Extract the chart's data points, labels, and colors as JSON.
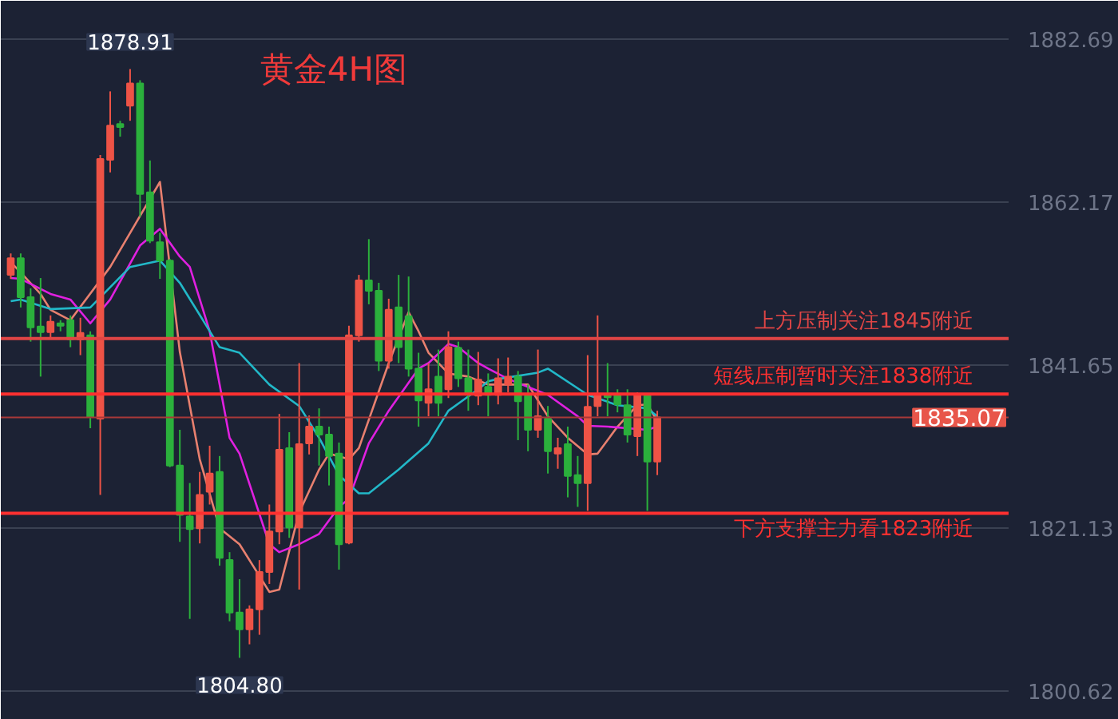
{
  "chart_data": {
    "type": "candlestick",
    "title": "黄金4H图",
    "categories": [
      null,
      null,
      null,
      null,
      null,
      null,
      null,
      null,
      null,
      null,
      null,
      null,
      null,
      null,
      null,
      null,
      null,
      null,
      null,
      null,
      null,
      null,
      null,
      null,
      null,
      null,
      null,
      null,
      null,
      null,
      null,
      null,
      null,
      null,
      null,
      null,
      null,
      null,
      null,
      null,
      null,
      null,
      null,
      null,
      null,
      null,
      null,
      null,
      null,
      null,
      null,
      null,
      null,
      null,
      null,
      null,
      null,
      null,
      null,
      null,
      null,
      null,
      null,
      null,
      null,
      null
    ],
    "ohlc": [
      [
        1853.0,
        1855.7,
        1852.5,
        1855.1
      ],
      [
        1855.1,
        1855.7,
        1848.9,
        1850.2
      ],
      [
        1850.2,
        1851.3,
        1844.6,
        1846.4
      ],
      [
        1846.5,
        1852.6,
        1840.2,
        1845.8
      ],
      [
        1845.8,
        1847.9,
        1844.9,
        1847.1
      ],
      [
        1846.9,
        1847.3,
        1845.9,
        1846.6
      ],
      [
        1847.3,
        1847.9,
        1843.9,
        1844.9
      ],
      [
        1844.9,
        1847.6,
        1842.9,
        1845.7
      ],
      [
        1845.4,
        1845.9,
        1833.7,
        1835.1
      ],
      [
        1834.9,
        1868.1,
        1825.3,
        1867.6
      ],
      [
        1867.5,
        1876.1,
        1865.9,
        1871.8
      ],
      [
        1872.0,
        1872.4,
        1870.4,
        1871.6
      ],
      [
        1874.3,
        1878.91,
        1872.4,
        1877.1
      ],
      [
        1877.1,
        1877.5,
        1860.3,
        1863.2
      ],
      [
        1863.4,
        1867.4,
        1857.0,
        1857.3
      ],
      [
        1857.1,
        1858.3,
        1852.5,
        1854.8
      ],
      [
        1854.8,
        1855.0,
        1828.8,
        1829.0
      ],
      [
        1829.0,
        1833.5,
        1819.4,
        1822.8
      ],
      [
        1822.6,
        1826.8,
        1809.7,
        1821.0
      ],
      [
        1821.1,
        1828.2,
        1819.2,
        1825.3
      ],
      [
        1825.7,
        1831.5,
        1824.1,
        1828.0
      ],
      [
        1828.2,
        1830.2,
        1816.4,
        1817.4
      ],
      [
        1817.1,
        1818.1,
        1809.4,
        1810.5
      ],
      [
        1810.5,
        1814.7,
        1804.8,
        1808.4
      ],
      [
        1808.4,
        1811.4,
        1806.5,
        1810.9
      ],
      [
        1810.9,
        1817.1,
        1807.7,
        1815.6
      ],
      [
        1815.6,
        1824.1,
        1814.1,
        1820.7
      ],
      [
        1820.7,
        1835.5,
        1819.1,
        1831.0
      ],
      [
        1831.2,
        1833.2,
        1819.9,
        1821.2
      ],
      [
        1821.2,
        1841.9,
        1813.4,
        1831.7
      ],
      [
        1831.8,
        1835.3,
        1830.4,
        1833.9
      ],
      [
        1833.9,
        1836.2,
        1829.0,
        1832.9
      ],
      [
        1832.9,
        1833.9,
        1826.5,
        1830.2
      ],
      [
        1830.5,
        1831.9,
        1815.9,
        1819.1
      ],
      [
        1819.3,
        1846.6,
        1819.1,
        1845.4
      ],
      [
        1845.4,
        1853.0,
        1844.6,
        1852.3
      ],
      [
        1852.3,
        1857.5,
        1849.3,
        1851.0
      ],
      [
        1851.0,
        1852.0,
        1840.9,
        1842.2
      ],
      [
        1842.2,
        1850.0,
        1841.2,
        1848.6
      ],
      [
        1848.9,
        1853.0,
        1841.9,
        1843.9
      ],
      [
        1847.8,
        1852.8,
        1840.2,
        1841.2
      ],
      [
        1841.2,
        1843.2,
        1833.9,
        1837.2
      ],
      [
        1836.9,
        1841.9,
        1835.2,
        1838.6
      ],
      [
        1840.2,
        1843.6,
        1835.2,
        1836.9
      ],
      [
        1838.6,
        1845.9,
        1837.5,
        1843.9
      ],
      [
        1843.8,
        1844.6,
        1838.9,
        1840.0
      ],
      [
        1840.0,
        1843.6,
        1835.9,
        1837.9
      ],
      [
        1837.8,
        1843.3,
        1836.6,
        1839.8
      ],
      [
        1838.9,
        1840.6,
        1835.2,
        1837.9
      ],
      [
        1837.9,
        1842.5,
        1836.7,
        1840.0
      ],
      [
        1839.2,
        1842.6,
        1838.2,
        1840.2
      ],
      [
        1840.2,
        1840.9,
        1832.2,
        1837.1
      ],
      [
        1837.8,
        1839.2,
        1830.8,
        1833.5
      ],
      [
        1833.5,
        1843.6,
        1832.5,
        1835.2
      ],
      [
        1834.9,
        1836.5,
        1828.0,
        1830.8
      ],
      [
        1830.5,
        1832.5,
        1828.6,
        1831.2
      ],
      [
        1831.7,
        1833.9,
        1825.0,
        1827.7
      ],
      [
        1827.8,
        1830.2,
        1823.8,
        1826.8
      ],
      [
        1826.8,
        1842.9,
        1823.3,
        1836.4
      ],
      [
        1836.5,
        1847.9,
        1835.2,
        1838.0
      ],
      [
        1838.0,
        1841.9,
        1835.2,
        1837.6
      ],
      [
        1837.9,
        1838.6,
        1835.7,
        1836.7
      ],
      [
        1836.6,
        1838.6,
        1831.9,
        1832.9
      ],
      [
        1832.7,
        1838.2,
        1830.2,
        1838.0
      ],
      [
        1837.8,
        1838.0,
        1823.3,
        1829.5
      ],
      [
        1829.5,
        1835.9,
        1827.8,
        1835.07
      ]
    ],
    "series": [
      {
        "type": "line",
        "color": "#e8806f",
        "values": [
          1854.6,
          1853.3,
          null,
          1850.6,
          1848.6,
          null,
          1847.3,
          null,
          null,
          null,
          1854.0,
          null,
          null,
          null,
          null,
          1864.7,
          null,
          1843.3,
          null,
          1829.8,
          null,
          1821.1,
          null,
          1819.1,
          null,
          null,
          1813.1,
          1813.4,
          null,
          1823.1,
          null,
          1828.5,
          1830.5,
          null,
          1829.8,
          1831.2,
          null,
          null,
          1841.9,
          null,
          1848.3,
          1845.9,
          1843.2,
          null,
          1840.6,
          null,
          1840.2,
          null,
          1839.2,
          null,
          null,
          null,
          1839.2,
          null,
          1835.2,
          null,
          1832.5,
          null,
          1830.4,
          1830.5,
          null,
          1833.9,
          null,
          1836.6,
          1836.7,
          1834.6
        ]
      },
      {
        "type": "line",
        "color": "#e020e0",
        "values": [
          1852.6,
          1852.5,
          null,
          null,
          1850.6,
          null,
          1849.9,
          null,
          1846.9,
          null,
          1849.9,
          null,
          null,
          1856.7,
          null,
          1858.8,
          null,
          1855.3,
          1854.0,
          null,
          1845.9,
          null,
          1832.5,
          1830.5,
          null,
          null,
          1819.1,
          1818.1,
          null,
          1819.1,
          null,
          1820.4,
          null,
          1823.8,
          1824.8,
          null,
          1831.8,
          null,
          1835.9,
          null,
          null,
          1841.2,
          1841.9,
          null,
          1844.3,
          1843.9,
          null,
          1841.9,
          1841.2,
          null,
          1839.9,
          null,
          null,
          null,
          1837.9,
          null,
          null,
          1835.2,
          1834.0,
          null,
          1833.9,
          null,
          null,
          null,
          1833.5,
          1833.9
        ]
      },
      {
        "type": "line",
        "color": "#22b8c8",
        "values": [
          1849.7,
          1849.9,
          null,
          null,
          1848.7,
          null,
          1848.8,
          null,
          1848.9,
          null,
          null,
          null,
          1854.0,
          null,
          null,
          1854.8,
          null,
          1852.0,
          null,
          null,
          null,
          1843.9,
          null,
          1843.2,
          null,
          null,
          1839.2,
          null,
          null,
          1836.5,
          null,
          1832.5,
          null,
          1827.8,
          null,
          1825.5,
          1825.5,
          null,
          null,
          1828.5,
          null,
          null,
          1831.8,
          null,
          1835.9,
          null,
          null,
          1838.6,
          1839.6,
          1839.9,
          null,
          null,
          null,
          1840.7,
          1841.2,
          null,
          null,
          null,
          1837.9,
          null,
          null,
          1836.6,
          null,
          null,
          1836.2,
          1835.2
        ]
      }
    ],
    "ylim": [
      1797.0,
      1887.5
    ],
    "yticks": [
      1800.62,
      1821.13,
      1841.65,
      1862.17,
      1882.69
    ],
    "ref_lines": [
      {
        "axis": "y",
        "value": 1845,
        "label": "上方压制关注1845附近",
        "color": "#e04545"
      },
      {
        "axis": "y",
        "value": 1838,
        "label": "短线压制暂时关注1838附近",
        "color": "#ff3030"
      },
      {
        "axis": "y",
        "value": 1823,
        "label": "下方支撑主力看1823附近",
        "color": "#ff3030"
      },
      {
        "axis": "y",
        "value": 1835.07,
        "color": "#a83838"
      }
    ],
    "annotations": [
      "1878.91",
      "1804.80",
      {
        "text": "1835.07",
        "y": 1835.07
      }
    ],
    "grid": "y",
    "tick_labels": "y"
  }
}
